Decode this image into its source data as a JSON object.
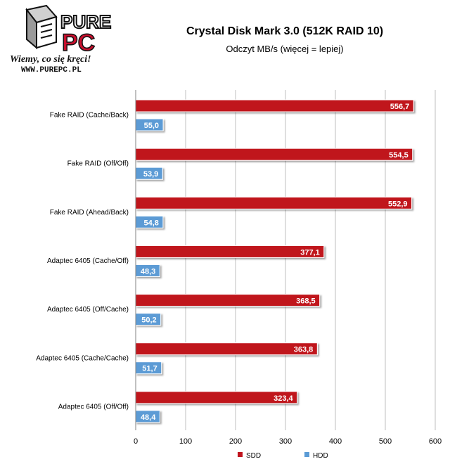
{
  "logo": {
    "brand_top": "PURE",
    "brand_bottom": "PC",
    "slogan": "Wiemy, co się kręci!",
    "url": "WWW.PUREPC.PL"
  },
  "colors": {
    "ssd": "#c0141e",
    "hdd": "#5b9bd5",
    "grid": "#bfbfbf",
    "logo_red": "#c8102e"
  },
  "chart_data": {
    "type": "bar",
    "orientation": "horizontal",
    "title": "Crystal Disk Mark 3.0 (512K RAID 10)",
    "subtitle": "Odczyt MB/s (więcej = lepiej)",
    "categories": [
      "Fake RAID (Cache/Back)",
      "Fake RAID (Off/Off)",
      "Fake RAID (Ahead/Back)",
      "Adaptec 6405 (Cache/Off)",
      "Adaptec 6405 (Off/Cache)",
      "Adaptec 6405 (Cache/Cache)",
      "Adaptec 6405 (Off/Off)"
    ],
    "series": [
      {
        "name": "SDD",
        "values": [
          556.7,
          554.5,
          552.9,
          377.1,
          368.5,
          363.8,
          323.4
        ]
      },
      {
        "name": "HDD",
        "values": [
          55.0,
          53.9,
          54.8,
          48.3,
          50.2,
          51.7,
          48.4
        ]
      }
    ],
    "value_labels": [
      [
        "556,7",
        "554,5",
        "552,9",
        "377,1",
        "368,5",
        "363,8",
        "323,4"
      ],
      [
        "55,0",
        "53,9",
        "54,8",
        "48,3",
        "50,2",
        "51,7",
        "48,4"
      ]
    ],
    "xlim": [
      0,
      600
    ],
    "xticks": [
      "0",
      "100",
      "200",
      "300",
      "400",
      "500",
      "600"
    ],
    "grid": true,
    "legend": "bottom-right"
  }
}
